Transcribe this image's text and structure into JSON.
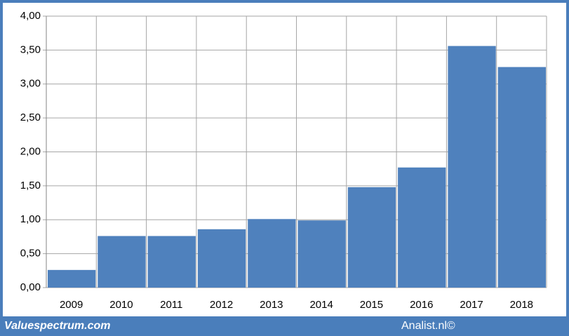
{
  "chart_data": {
    "type": "bar",
    "categories": [
      "2009",
      "2010",
      "2011",
      "2012",
      "2013",
      "2014",
      "2015",
      "2016",
      "2017",
      "2018"
    ],
    "values": [
      0.26,
      0.76,
      0.76,
      0.86,
      1.01,
      0.99,
      1.48,
      1.77,
      3.56,
      3.25
    ],
    "color": "#4f81bd",
    "ylim": [
      0,
      4
    ],
    "yticks": [
      {
        "value": 0,
        "label": "0,00"
      },
      {
        "value": 0.5,
        "label": "0,50"
      },
      {
        "value": 1,
        "label": "1,00"
      },
      {
        "value": 1.5,
        "label": "1,50"
      },
      {
        "value": 2,
        "label": "2,00"
      },
      {
        "value": 2.5,
        "label": "2,50"
      },
      {
        "value": 3,
        "label": "3,00"
      },
      {
        "value": 3.5,
        "label": "3,50"
      },
      {
        "value": 4,
        "label": "4,00"
      }
    ],
    "grid": true,
    "watermark": "Valuespectrum.com",
    "source": "Analist.nl©"
  }
}
